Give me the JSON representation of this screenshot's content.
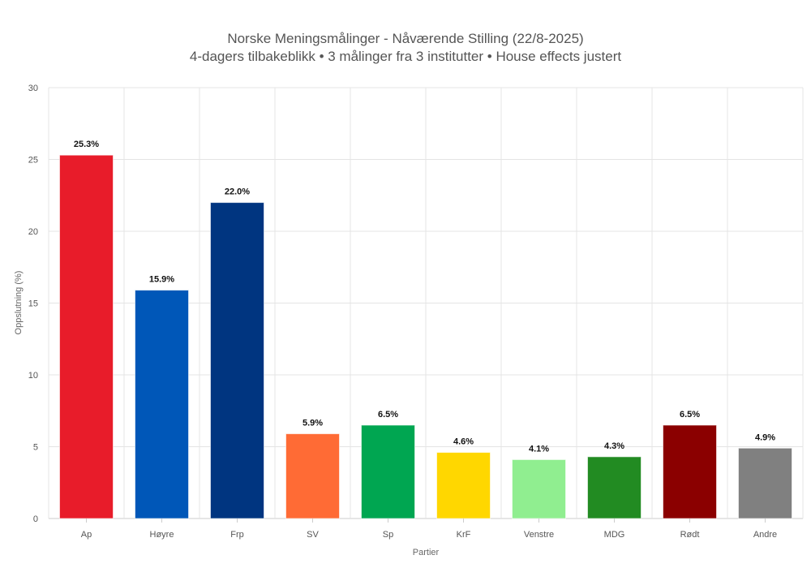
{
  "chart_data": {
    "type": "bar",
    "title": "Norske Meningsmålinger - Nåværende Stilling (22/8-2025)",
    "subtitle": "4-dagers tilbakeblikk • 3 målinger fra 3 institutter • House effects justert",
    "xlabel": "Partier",
    "ylabel": "Oppslutning (%)",
    "ylim": [
      0,
      30
    ],
    "yticks": [
      0,
      5,
      10,
      15,
      20,
      25,
      30
    ],
    "grid": true,
    "categories": [
      "Ap",
      "Høyre",
      "Frp",
      "SV",
      "Sp",
      "KrF",
      "Venstre",
      "MDG",
      "Rødt",
      "Andre"
    ],
    "values": [
      25.3,
      15.9,
      22.0,
      5.9,
      6.5,
      4.6,
      4.1,
      4.3,
      6.5,
      4.9
    ],
    "data_labels": [
      "25.3%",
      "15.9%",
      "22.0%",
      "5.9%",
      "6.5%",
      "4.6%",
      "4.1%",
      "4.3%",
      "6.5%",
      "4.9%"
    ],
    "colors": [
      "#E81C2A",
      "#0057B8",
      "#003580",
      "#FF6B35",
      "#00A651",
      "#FFD700",
      "#90EE90",
      "#228B22",
      "#8B0000",
      "#808080"
    ]
  }
}
